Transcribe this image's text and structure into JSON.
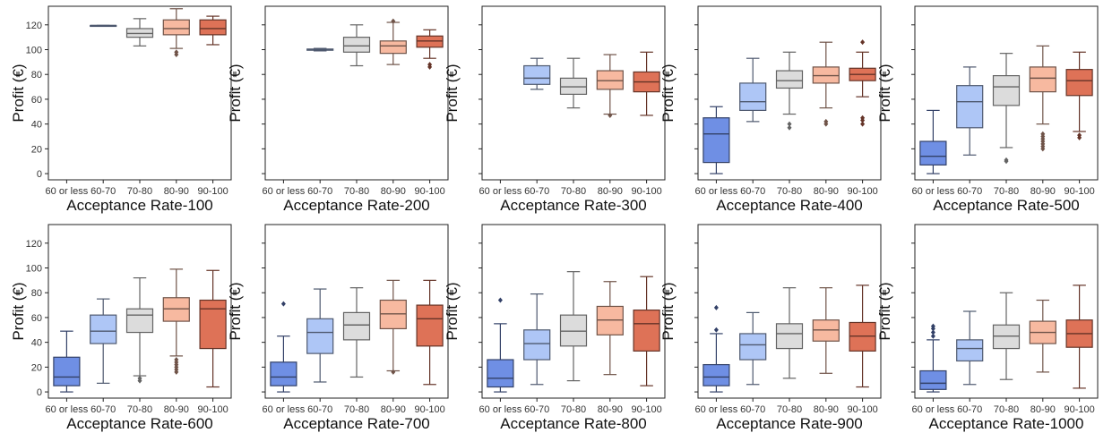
{
  "figure": {
    "ylabel": "Profit (€)"
  },
  "colors": {
    "60 or less": "#6f8fe4",
    "60-70": "#aec6f6",
    "70-80": "#dcdcdc",
    "80-90": "#f7b9a0",
    "90-100": "#de7257"
  },
  "chart_data": [
    {
      "type": "box",
      "xlabel": "Acceptance Rate-100",
      "ylabel": "Profit (€)",
      "ylim": [
        -5,
        135
      ],
      "yticks": [
        0,
        20,
        40,
        60,
        80,
        100,
        120
      ],
      "categories": [
        "60 or less",
        "60-70",
        "70-80",
        "80-90",
        "90-100"
      ],
      "boxes": [
        null,
        {
          "whislo": 119.5,
          "q1": 119.5,
          "med": 119.5,
          "q3": 119.5,
          "whishi": 119.5,
          "fliers": []
        },
        {
          "whislo": 103,
          "q1": 110,
          "med": 113,
          "q3": 117,
          "whishi": 125,
          "fliers": []
        },
        {
          "whislo": 101,
          "q1": 112,
          "med": 117,
          "q3": 124,
          "whishi": 133,
          "fliers": [
            98,
            96
          ]
        },
        {
          "whislo": 104,
          "q1": 112,
          "med": 117,
          "q3": 124,
          "whishi": 127,
          "fliers": []
        }
      ]
    },
    {
      "type": "box",
      "xlabel": "Acceptance Rate-200",
      "ylabel": "Profit (€)",
      "ylim": [
        -5,
        135
      ],
      "yticks": [
        0,
        20,
        40,
        60,
        80,
        100,
        120
      ],
      "categories": [
        "60 or less",
        "60-70",
        "70-80",
        "80-90",
        "90-100"
      ],
      "boxes": [
        null,
        {
          "whislo": 99,
          "q1": 99.5,
          "med": 100,
          "q3": 100.5,
          "whishi": 101,
          "fliers": []
        },
        {
          "whislo": 87,
          "q1": 98,
          "med": 103,
          "q3": 110,
          "whishi": 120,
          "fliers": []
        },
        {
          "whislo": 88,
          "q1": 97,
          "med": 103,
          "q3": 107,
          "whishi": 122,
          "fliers": [
            123
          ]
        },
        {
          "whislo": 93,
          "q1": 102,
          "med": 107,
          "q3": 111,
          "whishi": 116,
          "fliers": [
            88,
            86
          ]
        }
      ]
    },
    {
      "type": "box",
      "xlabel": "Acceptance Rate-300",
      "ylabel": "Profit (€)",
      "ylim": [
        -5,
        135
      ],
      "yticks": [
        0,
        20,
        40,
        60,
        80,
        100,
        120
      ],
      "categories": [
        "60 or less",
        "60-70",
        "70-80",
        "80-90",
        "90-100"
      ],
      "boxes": [
        null,
        {
          "whislo": 68,
          "q1": 72,
          "med": 77,
          "q3": 87,
          "whishi": 93,
          "fliers": []
        },
        {
          "whislo": 53,
          "q1": 64,
          "med": 70,
          "q3": 77,
          "whishi": 93,
          "fliers": []
        },
        {
          "whislo": 48,
          "q1": 68,
          "med": 75,
          "q3": 83,
          "whishi": 96,
          "fliers": [
            47
          ]
        },
        {
          "whislo": 47,
          "q1": 66,
          "med": 74,
          "q3": 82,
          "whishi": 98,
          "fliers": []
        }
      ]
    },
    {
      "type": "box",
      "xlabel": "Acceptance Rate-400",
      "ylabel": "Profit (€)",
      "ylim": [
        -5,
        135
      ],
      "yticks": [
        0,
        20,
        40,
        60,
        80,
        100,
        120
      ],
      "categories": [
        "60 or less",
        "60-70",
        "70-80",
        "80-90",
        "90-100"
      ],
      "boxes": [
        {
          "whislo": 0,
          "q1": 9,
          "med": 32,
          "q3": 45,
          "whishi": 54,
          "fliers": []
        },
        {
          "whislo": 42,
          "q1": 51,
          "med": 58,
          "q3": 73,
          "whishi": 93,
          "fliers": []
        },
        {
          "whislo": 48,
          "q1": 69,
          "med": 75,
          "q3": 83,
          "whishi": 98,
          "fliers": [
            40,
            37
          ]
        },
        {
          "whislo": 53,
          "q1": 73,
          "med": 79,
          "q3": 86,
          "whishi": 106,
          "fliers": [
            42,
            40
          ]
        },
        {
          "whislo": 62,
          "q1": 75,
          "med": 80,
          "q3": 85,
          "whishi": 98,
          "fliers": [
            106,
            45,
            43,
            40
          ]
        }
      ]
    },
    {
      "type": "box",
      "xlabel": "Acceptance Rate-500",
      "ylabel": "Profit (€)",
      "ylim": [
        -5,
        135
      ],
      "yticks": [
        0,
        20,
        40,
        60,
        80,
        100,
        120
      ],
      "categories": [
        "60 or less",
        "60-70",
        "70-80",
        "80-90",
        "90-100"
      ],
      "boxes": [
        {
          "whislo": 0,
          "q1": 7,
          "med": 14,
          "q3": 26,
          "whishi": 51,
          "fliers": []
        },
        {
          "whislo": 15,
          "q1": 37,
          "med": 58,
          "q3": 71,
          "whishi": 86,
          "fliers": []
        },
        {
          "whislo": 21,
          "q1": 55,
          "med": 70,
          "q3": 79,
          "whishi": 97,
          "fliers": [
            11,
            10
          ]
        },
        {
          "whislo": 40,
          "q1": 66,
          "med": 77,
          "q3": 86,
          "whishi": 103,
          "fliers": [
            32,
            30,
            28,
            26,
            24,
            22,
            20
          ]
        },
        {
          "whislo": 34,
          "q1": 63,
          "med": 75,
          "q3": 84,
          "whishi": 98,
          "fliers": [
            31,
            29
          ]
        }
      ]
    },
    {
      "type": "box",
      "xlabel": "Acceptance Rate-600",
      "ylabel": "Profit (€)",
      "ylim": [
        -5,
        135
      ],
      "yticks": [
        0,
        20,
        40,
        60,
        80,
        100,
        120
      ],
      "categories": [
        "60 or less",
        "60-70",
        "70-80",
        "80-90",
        "90-100"
      ],
      "boxes": [
        {
          "whislo": 0,
          "q1": 5,
          "med": 12,
          "q3": 28,
          "whishi": 49,
          "fliers": []
        },
        {
          "whislo": 7,
          "q1": 39,
          "med": 49,
          "q3": 62,
          "whishi": 75,
          "fliers": []
        },
        {
          "whislo": 13,
          "q1": 48,
          "med": 62,
          "q3": 67,
          "whishi": 92,
          "fliers": [
            11,
            9
          ]
        },
        {
          "whislo": 29,
          "q1": 57,
          "med": 67,
          "q3": 76,
          "whishi": 99,
          "fliers": [
            26,
            24,
            22,
            20,
            18,
            16
          ]
        },
        {
          "whislo": 4,
          "q1": 35,
          "med": 67,
          "q3": 74,
          "whishi": 98,
          "fliers": []
        }
      ]
    },
    {
      "type": "box",
      "xlabel": "Acceptance Rate-700",
      "ylabel": "Profit (€)",
      "ylim": [
        -5,
        135
      ],
      "yticks": [
        0,
        20,
        40,
        60,
        80,
        100,
        120
      ],
      "categories": [
        "60 or less",
        "60-70",
        "70-80",
        "80-90",
        "90-100"
      ],
      "boxes": [
        {
          "whislo": 0,
          "q1": 5,
          "med": 12,
          "q3": 24,
          "whishi": 45,
          "fliers": [
            71
          ]
        },
        {
          "whislo": 8,
          "q1": 31,
          "med": 48,
          "q3": 59,
          "whishi": 83,
          "fliers": []
        },
        {
          "whislo": 12,
          "q1": 42,
          "med": 54,
          "q3": 64,
          "whishi": 84,
          "fliers": []
        },
        {
          "whislo": 17,
          "q1": 51,
          "med": 63,
          "q3": 74,
          "whishi": 90,
          "fliers": [
            16
          ]
        },
        {
          "whislo": 6,
          "q1": 37,
          "med": 59,
          "q3": 70,
          "whishi": 90,
          "fliers": []
        }
      ]
    },
    {
      "type": "box",
      "xlabel": "Acceptance Rate-800",
      "ylabel": "Profit (€)",
      "ylim": [
        -5,
        135
      ],
      "yticks": [
        0,
        20,
        40,
        60,
        80,
        100,
        120
      ],
      "categories": [
        "60 or less",
        "60-70",
        "70-80",
        "80-90",
        "90-100"
      ],
      "boxes": [
        {
          "whislo": 0,
          "q1": 4,
          "med": 11,
          "q3": 26,
          "whishi": 55,
          "fliers": [
            74
          ]
        },
        {
          "whislo": 6,
          "q1": 26,
          "med": 39,
          "q3": 50,
          "whishi": 79,
          "fliers": []
        },
        {
          "whislo": 9,
          "q1": 37,
          "med": 49,
          "q3": 62,
          "whishi": 97,
          "fliers": []
        },
        {
          "whislo": 14,
          "q1": 46,
          "med": 58,
          "q3": 69,
          "whishi": 89,
          "fliers": []
        },
        {
          "whislo": 5,
          "q1": 33,
          "med": 55,
          "q3": 66,
          "whishi": 93,
          "fliers": []
        }
      ]
    },
    {
      "type": "box",
      "xlabel": "Acceptance Rate-900",
      "ylabel": "Profit (€)",
      "ylim": [
        -5,
        135
      ],
      "yticks": [
        0,
        20,
        40,
        60,
        80,
        100,
        120
      ],
      "categories": [
        "60 or less",
        "60-70",
        "70-80",
        "80-90",
        "90-100"
      ],
      "boxes": [
        {
          "whislo": 0,
          "q1": 5,
          "med": 12,
          "q3": 22,
          "whishi": 47,
          "fliers": [
            68,
            50
          ]
        },
        {
          "whislo": 6,
          "q1": 26,
          "med": 38,
          "q3": 47,
          "whishi": 64,
          "fliers": []
        },
        {
          "whislo": 11,
          "q1": 35,
          "med": 47,
          "q3": 55,
          "whishi": 84,
          "fliers": []
        },
        {
          "whislo": 15,
          "q1": 41,
          "med": 50,
          "q3": 58,
          "whishi": 84,
          "fliers": []
        },
        {
          "whislo": 4,
          "q1": 33,
          "med": 45,
          "q3": 56,
          "whishi": 86,
          "fliers": []
        }
      ]
    },
    {
      "type": "box",
      "xlabel": "Acceptance Rate-1000",
      "ylabel": "Profit (€)",
      "ylim": [
        -5,
        135
      ],
      "yticks": [
        0,
        20,
        40,
        60,
        80,
        100,
        120
      ],
      "categories": [
        "60 or less",
        "60-70",
        "70-80",
        "80-90",
        "90-100"
      ],
      "boxes": [
        {
          "whislo": 0,
          "q1": 2,
          "med": 7,
          "q3": 17,
          "whishi": 42,
          "fliers": [
            53,
            51,
            48,
            45
          ]
        },
        {
          "whislo": 6,
          "q1": 25,
          "med": 35,
          "q3": 42,
          "whishi": 65,
          "fliers": []
        },
        {
          "whislo": 10,
          "q1": 35,
          "med": 45,
          "q3": 54,
          "whishi": 80,
          "fliers": []
        },
        {
          "whislo": 16,
          "q1": 39,
          "med": 48,
          "q3": 57,
          "whishi": 74,
          "fliers": []
        },
        {
          "whislo": 3,
          "q1": 36,
          "med": 47,
          "q3": 58,
          "whishi": 86,
          "fliers": []
        }
      ]
    }
  ]
}
